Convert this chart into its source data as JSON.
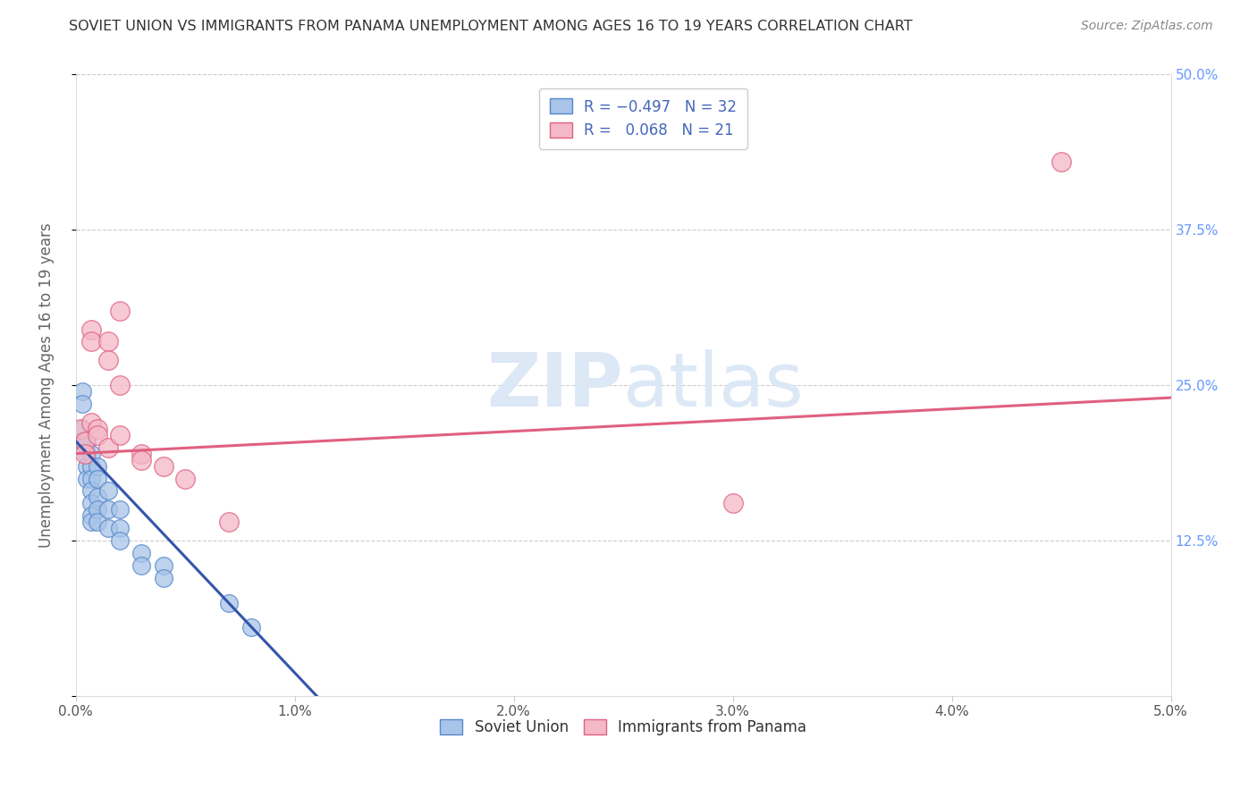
{
  "title": "SOVIET UNION VS IMMIGRANTS FROM PANAMA UNEMPLOYMENT AMONG AGES 16 TO 19 YEARS CORRELATION CHART",
  "source_text": "Source: ZipAtlas.com",
  "ylabel": "Unemployment Among Ages 16 to 19 years",
  "xlim": [
    0.0,
    0.05
  ],
  "ylim": [
    0.0,
    0.5
  ],
  "xticks": [
    0.0,
    0.01,
    0.02,
    0.03,
    0.04,
    0.05
  ],
  "yticks": [
    0.0,
    0.125,
    0.25,
    0.375,
    0.5
  ],
  "xticklabels": [
    "0.0%",
    "1.0%",
    "2.0%",
    "3.0%",
    "4.0%",
    "5.0%"
  ],
  "yticklabels_right": [
    "",
    "12.5%",
    "25.0%",
    "37.5%",
    "50.0%"
  ],
  "soviet_color": "#a8c4e8",
  "soviet_edge": "#5588cc",
  "panama_color": "#f4b8c8",
  "panama_edge": "#e06080",
  "line_soviet": "#3355aa",
  "line_panama": "#e06080",
  "background_color": "#ffffff",
  "title_color": "#333333",
  "axis_label_color": "#666666",
  "right_tick_color": "#6699ff",
  "watermark_color": "#dce8f5",
  "soviet_x": [
    0.0003,
    0.0003,
    0.0003,
    0.0003,
    0.0005,
    0.0005,
    0.0005,
    0.0005,
    0.0007,
    0.0007,
    0.0007,
    0.0007,
    0.0007,
    0.0007,
    0.0007,
    0.001,
    0.001,
    0.001,
    0.001,
    0.001,
    0.0015,
    0.0015,
    0.0015,
    0.002,
    0.002,
    0.002,
    0.003,
    0.003,
    0.004,
    0.004,
    0.007,
    0.008
  ],
  "soviet_y": [
    0.245,
    0.235,
    0.215,
    0.205,
    0.205,
    0.195,
    0.185,
    0.175,
    0.195,
    0.185,
    0.175,
    0.165,
    0.155,
    0.145,
    0.14,
    0.185,
    0.175,
    0.16,
    0.15,
    0.14,
    0.165,
    0.15,
    0.135,
    0.15,
    0.135,
    0.125,
    0.115,
    0.105,
    0.105,
    0.095,
    0.075,
    0.055
  ],
  "panama_x": [
    0.0002,
    0.0004,
    0.0004,
    0.0007,
    0.0007,
    0.0007,
    0.001,
    0.001,
    0.0015,
    0.0015,
    0.0015,
    0.002,
    0.002,
    0.002,
    0.003,
    0.003,
    0.004,
    0.005,
    0.007,
    0.03,
    0.045
  ],
  "panama_y": [
    0.215,
    0.205,
    0.195,
    0.295,
    0.285,
    0.22,
    0.215,
    0.21,
    0.285,
    0.27,
    0.2,
    0.31,
    0.25,
    0.21,
    0.195,
    0.19,
    0.185,
    0.175,
    0.14,
    0.155,
    0.43
  ],
  "soviet_line_x": [
    0.0,
    0.011
  ],
  "soviet_line_y": [
    0.205,
    0.0
  ],
  "panama_line_x": [
    0.0,
    0.05
  ],
  "panama_line_y": [
    0.195,
    0.24
  ]
}
